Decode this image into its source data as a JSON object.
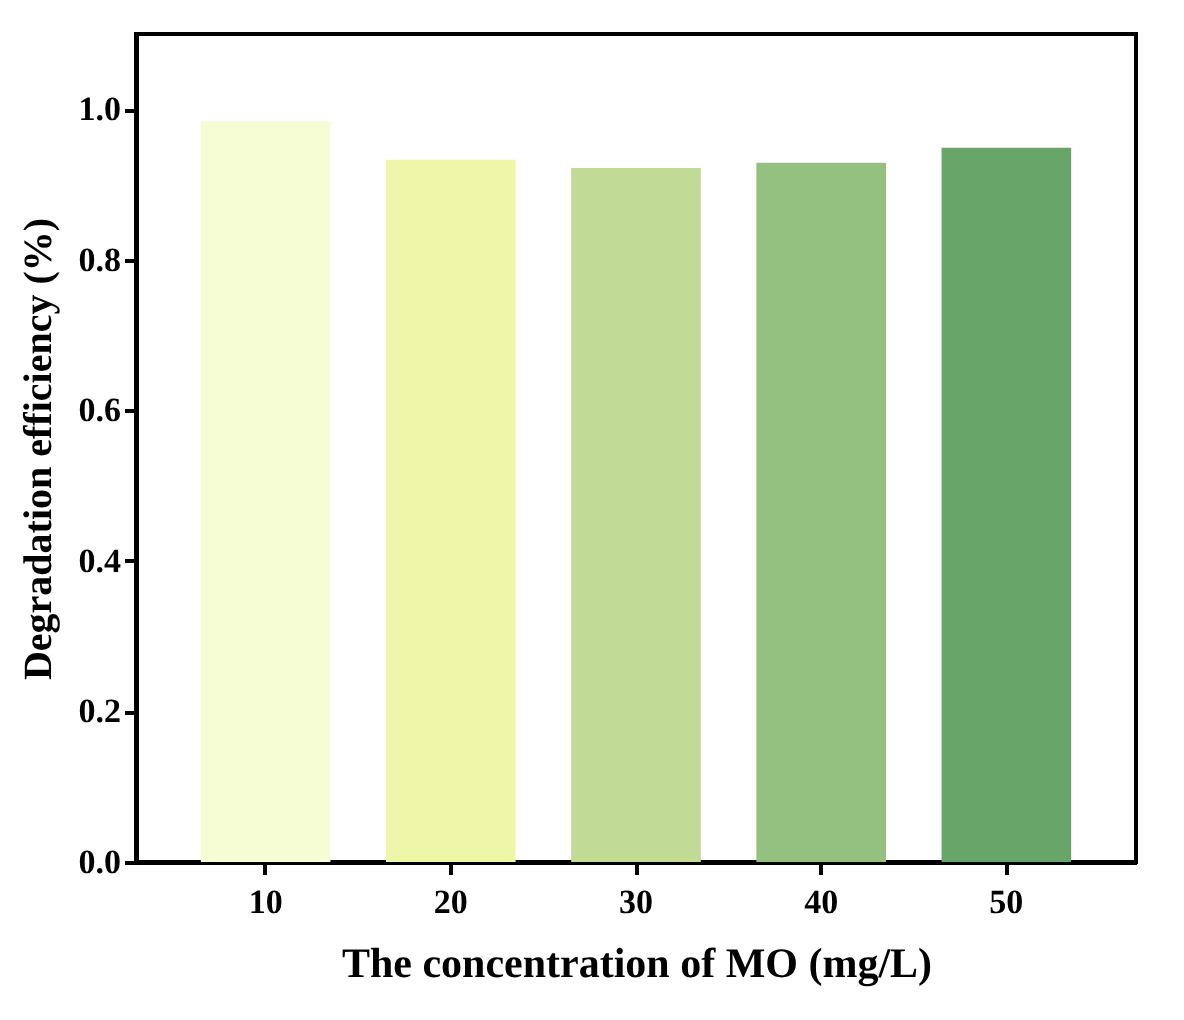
{
  "chart_data": {
    "type": "bar",
    "xlabel": "The concentration of MO (mg/L)",
    "ylabel": "Degradation efficiency (%)",
    "categories": [
      "10",
      "20",
      "30",
      "40",
      "50"
    ],
    "values": [
      0.984,
      0.933,
      0.922,
      0.929,
      0.949
    ],
    "colors": [
      "#f6fcd4",
      "#eef6a9",
      "#c1da95",
      "#94c17f",
      "#67a668"
    ],
    "ylim": [
      0,
      1.1
    ],
    "yticks": [
      {
        "value": 0,
        "label": "0.0"
      },
      {
        "value": 0.2,
        "label": "0.2"
      },
      {
        "value": 0.4,
        "label": "0.4"
      },
      {
        "value": 0.6,
        "label": "0.6"
      },
      {
        "value": 0.8,
        "label": "0.8"
      },
      {
        "value": 1,
        "label": "1.0"
      }
    ],
    "grid": false
  }
}
